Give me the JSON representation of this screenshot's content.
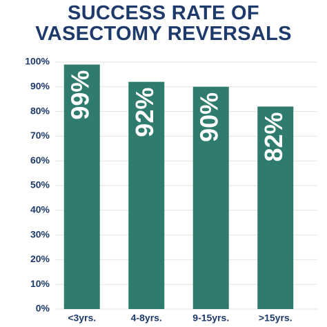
{
  "chart_data": {
    "type": "bar",
    "title": "SUCCESS RATE OF VASECTOMY REVERSALS",
    "categories": [
      "<3yrs.",
      "4-8yrs.",
      "9-15yrs.",
      ">15yrs."
    ],
    "values": [
      99,
      92,
      90,
      82
    ],
    "value_labels": [
      "99%",
      "92%",
      "90%",
      "82%"
    ],
    "color": "#2f7b6e",
    "ylim": [
      0,
      100
    ],
    "yticks": [
      {
        "value": 0,
        "label": "0%"
      },
      {
        "value": 10,
        "label": "10%"
      },
      {
        "value": 20,
        "label": "20%"
      },
      {
        "value": 30,
        "label": "30%"
      },
      {
        "value": 40,
        "label": "40%"
      },
      {
        "value": 50,
        "label": "50%"
      },
      {
        "value": 60,
        "label": "60%"
      },
      {
        "value": 70,
        "label": "70%"
      },
      {
        "value": 80,
        "label": "80%"
      },
      {
        "value": 90,
        "label": "90%"
      },
      {
        "value": 100,
        "label": "100%"
      }
    ],
    "grid": true
  }
}
